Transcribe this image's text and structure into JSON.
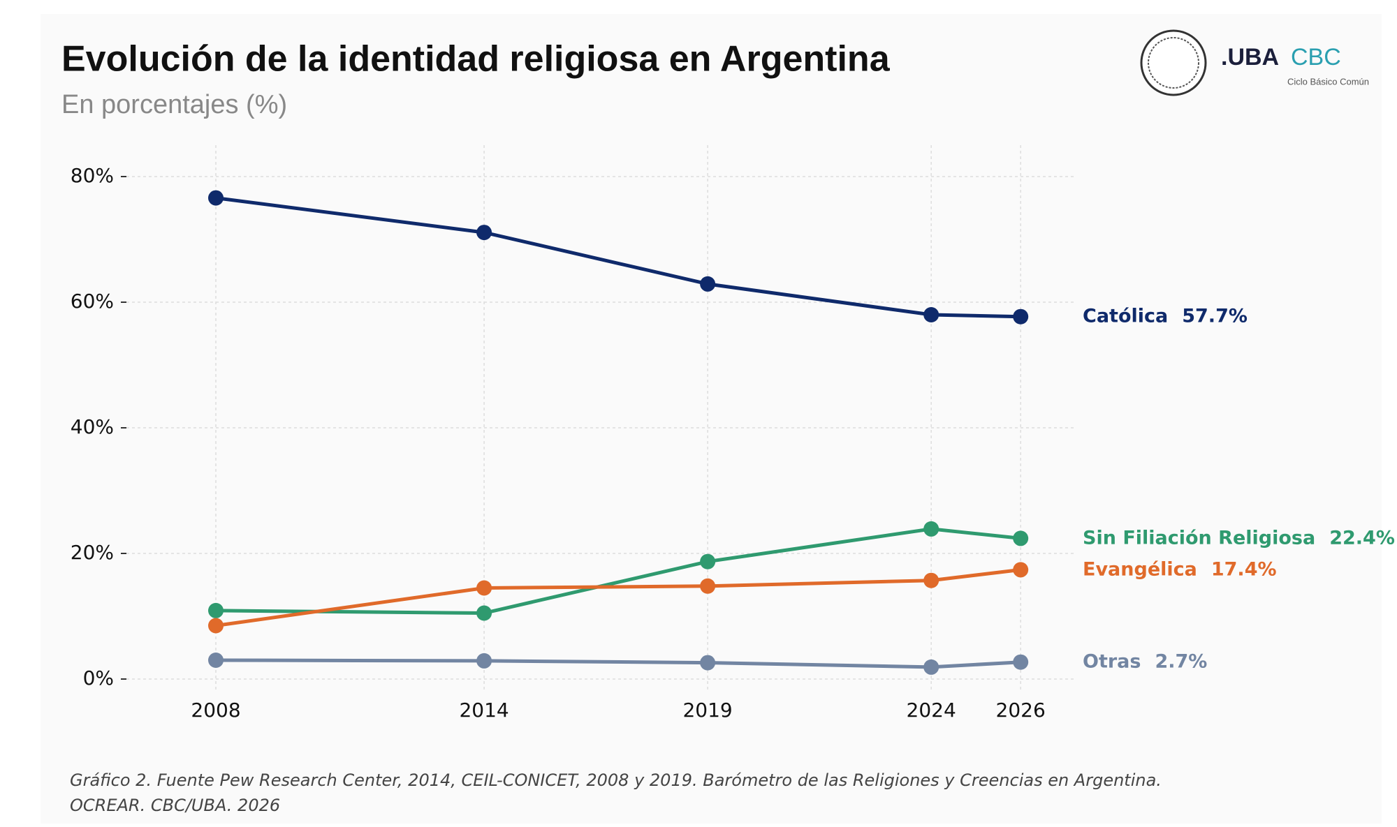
{
  "chart_data": {
    "type": "line",
    "title": "Evolución de la identidad religiosa en Argentina",
    "subtitle": "En porcentajes (%)",
    "x": [
      2008,
      2014,
      2019,
      2024,
      2026
    ],
    "xlim": [
      2006,
      2027.2
    ],
    "xticks": [
      2008,
      2014,
      2019,
      2024,
      2026
    ],
    "ylim": [
      -2,
      85
    ],
    "yticks": [
      {
        "value": 0,
        "label": "0%"
      },
      {
        "value": 20,
        "label": "20%"
      },
      {
        "value": 40,
        "label": "40%"
      },
      {
        "value": 60,
        "label": "60%"
      },
      {
        "value": 80,
        "label": "80%"
      }
    ],
    "grid": true,
    "series": [
      {
        "name": "Católica",
        "color": "#0f2a6b",
        "values": [
          76.6,
          71.1,
          62.9,
          58.0,
          57.7
        ],
        "value_labels": [
          null,
          null,
          null,
          null,
          "57.7%"
        ]
      },
      {
        "name": "Sin Filiación Religiosa",
        "color": "#2f9a6f",
        "values": [
          10.9,
          10.5,
          18.7,
          23.9,
          22.4
        ],
        "value_labels": [
          null,
          null,
          null,
          null,
          "22.4%"
        ]
      },
      {
        "name": "Evangélica",
        "color": "#e06a2a",
        "values": [
          8.5,
          14.5,
          14.8,
          15.7,
          17.4
        ],
        "value_labels": [
          null,
          null,
          null,
          null,
          "17.4%"
        ]
      },
      {
        "name": "Otras",
        "color": "#7285a2",
        "values": [
          3.0,
          2.9,
          2.6,
          1.9,
          2.7
        ],
        "value_labels": [
          null,
          null,
          null,
          null,
          "2.7%"
        ]
      }
    ],
    "caption": "Gráfico 2. Fuente Pew Research Center, 2014, CEIL-CONICET, 2008 y 2019. Barómetro de las Religiones y Creencias en Argentina. OCREAR. CBC/UBA. 2026"
  },
  "logo": {
    "uba": ".UBA",
    "cbc": "CBC",
    "tagline": "Ciclo Básico Común"
  }
}
